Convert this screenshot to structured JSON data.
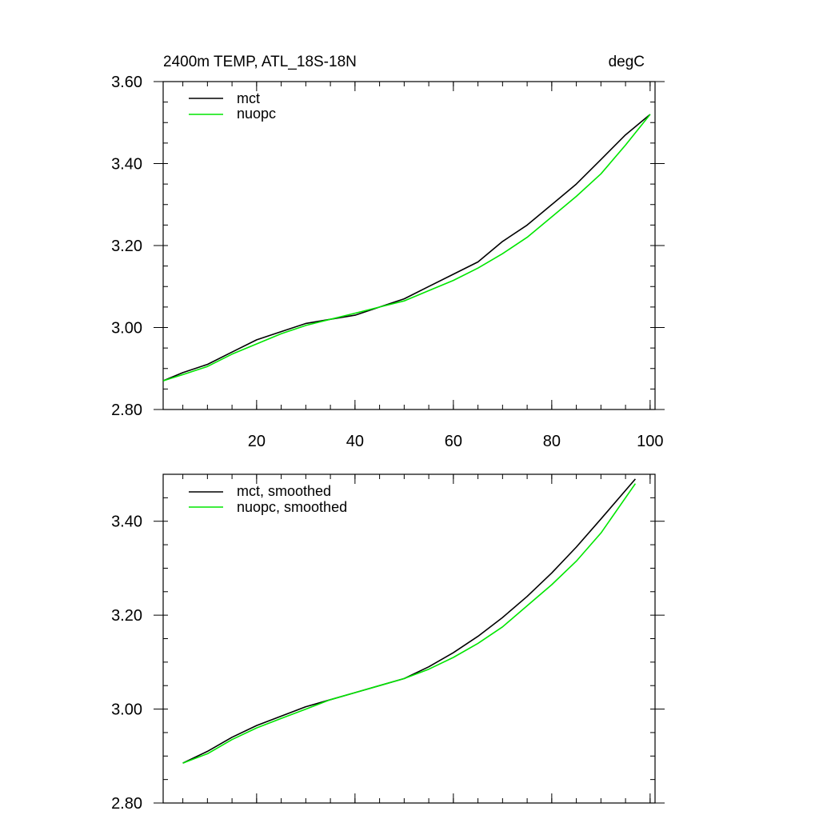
{
  "page": {
    "title": "2400m TEMP, ATL_18S-18N",
    "units": "degC"
  },
  "colors": {
    "mct": "#000000",
    "nuopc": "#00e600"
  },
  "chart_data": [
    {
      "type": "line",
      "title": "2400m TEMP, ATL_18S-18N",
      "units": "degC",
      "xlabel": "",
      "ylabel": "",
      "xlim": [
        1,
        101
      ],
      "ylim": [
        2.8,
        3.6
      ],
      "xticks": [
        20,
        40,
        60,
        80,
        100
      ],
      "xtick_labels": [
        "20",
        "40",
        "60",
        "80",
        "100"
      ],
      "yticks": [
        2.8,
        3.0,
        3.2,
        3.4,
        3.6
      ],
      "ytick_labels": [
        "2.80",
        "3.00",
        "3.20",
        "3.40",
        "3.60"
      ],
      "legend_position": "top-left",
      "series": [
        {
          "name": "mct",
          "color": "#000000",
          "x": [
            1,
            5,
            10,
            15,
            20,
            25,
            30,
            35,
            40,
            45,
            50,
            55,
            60,
            65,
            70,
            75,
            80,
            85,
            90,
            95,
            100
          ],
          "values": [
            2.87,
            2.89,
            2.91,
            2.94,
            2.97,
            2.99,
            3.01,
            3.02,
            3.03,
            3.05,
            3.07,
            3.1,
            3.13,
            3.16,
            3.21,
            3.25,
            3.3,
            3.35,
            3.41,
            3.47,
            3.52
          ]
        },
        {
          "name": "nuopc",
          "color": "#00e600",
          "x": [
            1,
            5,
            10,
            15,
            20,
            25,
            30,
            35,
            40,
            45,
            50,
            55,
            60,
            65,
            70,
            75,
            80,
            85,
            90,
            95,
            100
          ],
          "values": [
            2.87,
            2.885,
            2.905,
            2.935,
            2.96,
            2.985,
            3.005,
            3.02,
            3.035,
            3.05,
            3.065,
            3.09,
            3.115,
            3.145,
            3.18,
            3.22,
            3.27,
            3.32,
            3.375,
            3.445,
            3.52
          ]
        }
      ]
    },
    {
      "type": "line",
      "title": "",
      "xlabel": "",
      "ylabel": "",
      "xlim": [
        1,
        101
      ],
      "ylim": [
        2.8,
        3.5
      ],
      "xticks": [
        20,
        40,
        60,
        80,
        100
      ],
      "yticks": [
        2.8,
        3.0,
        3.2,
        3.4
      ],
      "ytick_labels": [
        "2.80",
        "3.00",
        "3.20",
        "3.40"
      ],
      "legend_position": "top-left",
      "series": [
        {
          "name": "mct, smoothed",
          "color": "#000000",
          "x": [
            5,
            10,
            15,
            20,
            25,
            30,
            35,
            40,
            45,
            50,
            55,
            60,
            65,
            70,
            75,
            80,
            85,
            90,
            97
          ],
          "values": [
            2.885,
            2.91,
            2.94,
            2.965,
            2.985,
            3.005,
            3.02,
            3.035,
            3.05,
            3.065,
            3.09,
            3.12,
            3.155,
            3.195,
            3.24,
            3.29,
            3.345,
            3.405,
            3.49
          ]
        },
        {
          "name": "nuopc, smoothed",
          "color": "#00e600",
          "x": [
            5,
            10,
            15,
            20,
            25,
            30,
            35,
            40,
            45,
            50,
            55,
            60,
            65,
            70,
            75,
            80,
            85,
            90,
            97
          ],
          "values": [
            2.885,
            2.905,
            2.935,
            2.96,
            2.98,
            3.0,
            3.02,
            3.035,
            3.05,
            3.065,
            3.085,
            3.11,
            3.14,
            3.175,
            3.22,
            3.265,
            3.315,
            3.375,
            3.48
          ]
        }
      ]
    }
  ]
}
